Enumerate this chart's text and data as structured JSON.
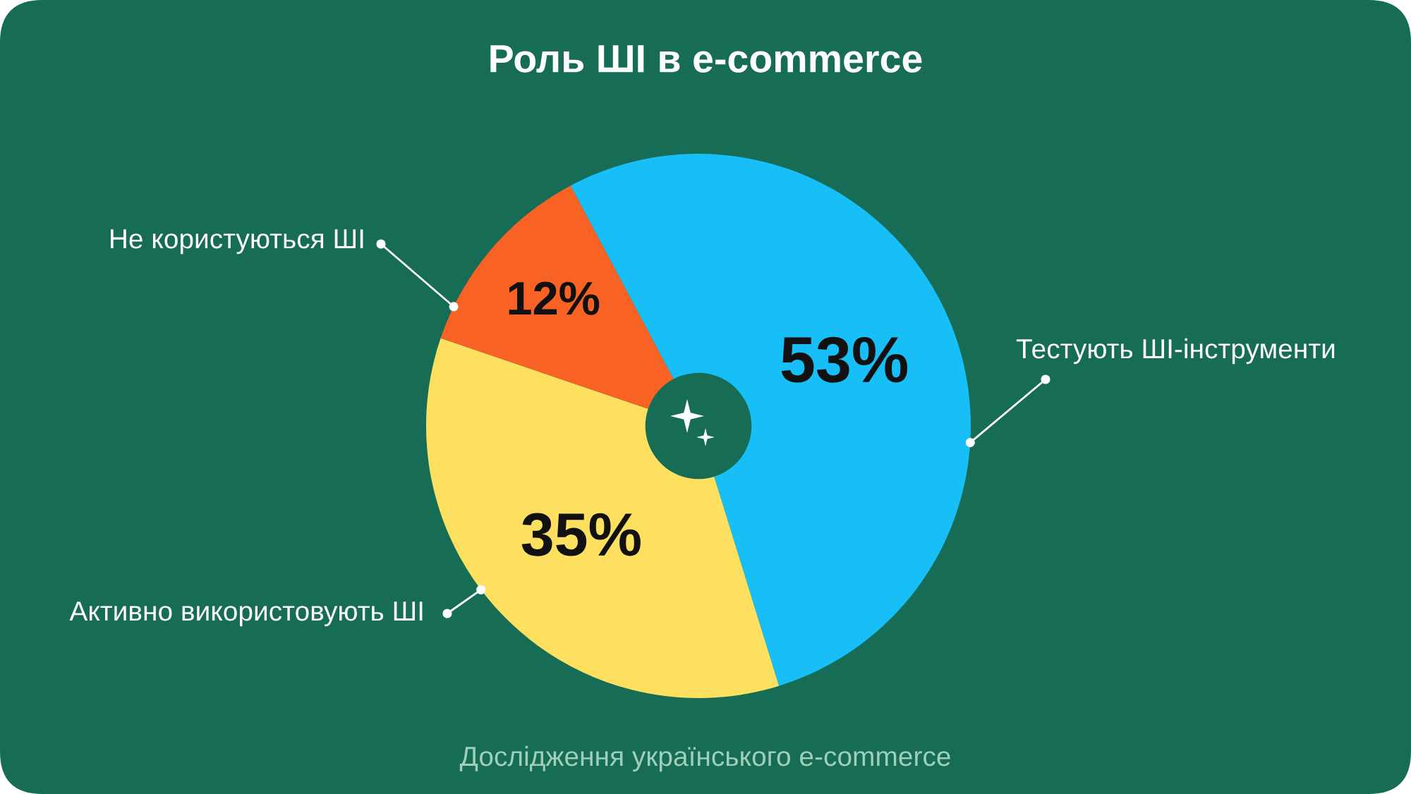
{
  "chart_data": {
    "type": "donut",
    "title": "Роль ШІ в e-commerce",
    "categories": [
      "Тестують ШІ-інструменти",
      "Активно використовують ШІ",
      "Не користуються ШІ"
    ],
    "values": [
      53,
      35,
      12
    ],
    "colors": [
      "#18bff7",
      "#fde05f",
      "#f86325"
    ],
    "value_labels": [
      "53%",
      "35%",
      "12%"
    ],
    "annotations": [
      "Дослідження українського e-commerce"
    ]
  }
}
